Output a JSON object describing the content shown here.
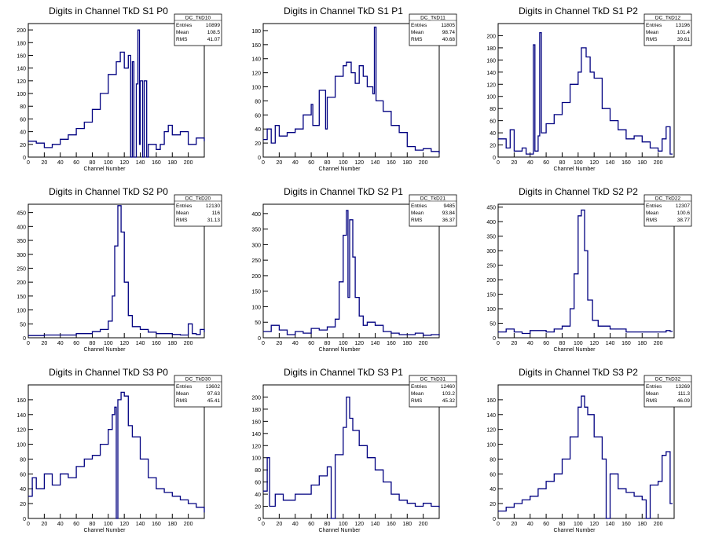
{
  "chart_data": [
    {
      "type": "histogram",
      "title": "Digits in Channel TkD S1 P0",
      "xlabel": "Channel Number",
      "ylabel": "",
      "xlim": [
        0,
        220
      ],
      "ylim": [
        0,
        210
      ],
      "yticks": [
        0,
        20,
        40,
        60,
        80,
        100,
        120,
        140,
        160,
        180,
        200
      ],
      "xticks": [
        0,
        20,
        40,
        60,
        80,
        100,
        120,
        140,
        160,
        180,
        200
      ],
      "stats": {
        "name": "DC_TkD10",
        "entries": "10899",
        "mean": "108.5",
        "rms": "41.07"
      },
      "points": [
        [
          0,
          25
        ],
        [
          10,
          22
        ],
        [
          20,
          15
        ],
        [
          30,
          20
        ],
        [
          40,
          28
        ],
        [
          50,
          35
        ],
        [
          60,
          45
        ],
        [
          70,
          55
        ],
        [
          80,
          75
        ],
        [
          90,
          100
        ],
        [
          100,
          130
        ],
        [
          110,
          150
        ],
        [
          115,
          165
        ],
        [
          120,
          140
        ],
        [
          125,
          160
        ],
        [
          128,
          0
        ],
        [
          130,
          150
        ],
        [
          132,
          0
        ],
        [
          135,
          115
        ],
        [
          137,
          200
        ],
        [
          139,
          20
        ],
        [
          140,
          120
        ],
        [
          143,
          0
        ],
        [
          145,
          120
        ],
        [
          148,
          0
        ],
        [
          150,
          20
        ],
        [
          160,
          12
        ],
        [
          165,
          20
        ],
        [
          170,
          40
        ],
        [
          175,
          50
        ],
        [
          180,
          35
        ],
        [
          190,
          40
        ],
        [
          200,
          20
        ],
        [
          210,
          30
        ],
        [
          220,
          25
        ]
      ]
    },
    {
      "type": "histogram",
      "title": "Digits in Channel TkD S1 P1",
      "xlabel": "Channel Number",
      "ylabel": "",
      "xlim": [
        0,
        220
      ],
      "ylim": [
        0,
        190
      ],
      "yticks": [
        0,
        20,
        40,
        60,
        80,
        100,
        120,
        140,
        160,
        180
      ],
      "xticks": [
        0,
        20,
        40,
        60,
        80,
        100,
        120,
        140,
        160,
        180,
        200
      ],
      "stats": {
        "name": "DC_TkD11",
        "entries": "11805",
        "mean": "98.74",
        "rms": "40.68"
      },
      "points": [
        [
          0,
          25
        ],
        [
          5,
          40
        ],
        [
          10,
          20
        ],
        [
          15,
          45
        ],
        [
          20,
          30
        ],
        [
          30,
          35
        ],
        [
          40,
          40
        ],
        [
          50,
          60
        ],
        [
          60,
          75
        ],
        [
          62,
          45
        ],
        [
          70,
          95
        ],
        [
          78,
          40
        ],
        [
          80,
          85
        ],
        [
          90,
          115
        ],
        [
          100,
          130
        ],
        [
          104,
          135
        ],
        [
          110,
          120
        ],
        [
          115,
          105
        ],
        [
          120,
          130
        ],
        [
          125,
          115
        ],
        [
          130,
          100
        ],
        [
          137,
          90
        ],
        [
          139,
          185
        ],
        [
          141,
          80
        ],
        [
          150,
          65
        ],
        [
          160,
          45
        ],
        [
          170,
          35
        ],
        [
          180,
          15
        ],
        [
          190,
          10
        ],
        [
          200,
          12
        ],
        [
          210,
          8
        ],
        [
          220,
          5
        ]
      ]
    },
    {
      "type": "histogram",
      "title": "Digits in Channel TkD S1 P2",
      "xlabel": "Channel Number",
      "ylabel": "",
      "xlim": [
        0,
        220
      ],
      "ylim": [
        0,
        220
      ],
      "yticks": [
        0,
        20,
        40,
        60,
        80,
        100,
        120,
        140,
        160,
        180,
        200
      ],
      "xticks": [
        0,
        20,
        40,
        60,
        80,
        100,
        120,
        140,
        160,
        180,
        200
      ],
      "stats": {
        "name": "DC_TkD12",
        "entries": "13196",
        "mean": "101.4",
        "rms": "39.61"
      },
      "points": [
        [
          0,
          30
        ],
        [
          10,
          15
        ],
        [
          15,
          45
        ],
        [
          20,
          10
        ],
        [
          30,
          15
        ],
        [
          35,
          5
        ],
        [
          44,
          185
        ],
        [
          46,
          10
        ],
        [
          50,
          35
        ],
        [
          52,
          205
        ],
        [
          54,
          40
        ],
        [
          60,
          55
        ],
        [
          70,
          70
        ],
        [
          80,
          90
        ],
        [
          90,
          120
        ],
        [
          100,
          140
        ],
        [
          104,
          180
        ],
        [
          110,
          165
        ],
        [
          115,
          140
        ],
        [
          120,
          130
        ],
        [
          130,
          80
        ],
        [
          140,
          60
        ],
        [
          150,
          45
        ],
        [
          160,
          30
        ],
        [
          170,
          35
        ],
        [
          180,
          25
        ],
        [
          190,
          15
        ],
        [
          200,
          10
        ],
        [
          205,
          30
        ],
        [
          210,
          50
        ],
        [
          215,
          5
        ]
      ]
    },
    {
      "type": "histogram",
      "title": "Digits in Channel TkD S2 P0",
      "xlabel": "Channel Number",
      "ylabel": "",
      "xlim": [
        0,
        220
      ],
      "ylim": [
        0,
        480
      ],
      "yticks": [
        0,
        50,
        100,
        150,
        200,
        250,
        300,
        350,
        400,
        450
      ],
      "xticks": [
        0,
        20,
        40,
        60,
        80,
        100,
        120,
        140,
        160,
        180,
        200
      ],
      "stats": {
        "name": "DC_TkD20",
        "entries": "12130",
        "mean": "116",
        "rms": "31.13"
      },
      "points": [
        [
          0,
          8
        ],
        [
          20,
          10
        ],
        [
          40,
          10
        ],
        [
          60,
          15
        ],
        [
          80,
          22
        ],
        [
          90,
          30
        ],
        [
          100,
          60
        ],
        [
          105,
          150
        ],
        [
          108,
          330
        ],
        [
          112,
          475
        ],
        [
          116,
          380
        ],
        [
          120,
          200
        ],
        [
          125,
          80
        ],
        [
          130,
          40
        ],
        [
          140,
          30
        ],
        [
          150,
          20
        ],
        [
          160,
          15
        ],
        [
          170,
          15
        ],
        [
          180,
          12
        ],
        [
          190,
          10
        ],
        [
          200,
          50
        ],
        [
          205,
          15
        ],
        [
          210,
          12
        ],
        [
          215,
          30
        ],
        [
          220,
          20
        ]
      ]
    },
    {
      "type": "histogram",
      "title": "Digits in Channel TkD S2 P1",
      "xlabel": "Channel Number",
      "ylabel": "",
      "xlim": [
        0,
        220
      ],
      "ylim": [
        0,
        430
      ],
      "yticks": [
        0,
        50,
        100,
        150,
        200,
        250,
        300,
        350,
        400
      ],
      "xticks": [
        0,
        20,
        40,
        60,
        80,
        100,
        120,
        140,
        160,
        180,
        200
      ],
      "stats": {
        "name": "DC_TkD21",
        "entries": "9485",
        "mean": "93.84",
        "rms": "36.37"
      },
      "points": [
        [
          0,
          20
        ],
        [
          10,
          40
        ],
        [
          20,
          25
        ],
        [
          30,
          10
        ],
        [
          40,
          20
        ],
        [
          50,
          15
        ],
        [
          60,
          30
        ],
        [
          70,
          25
        ],
        [
          80,
          35
        ],
        [
          90,
          60
        ],
        [
          95,
          180
        ],
        [
          100,
          330
        ],
        [
          104,
          410
        ],
        [
          106,
          130
        ],
        [
          108,
          380
        ],
        [
          112,
          260
        ],
        [
          115,
          130
        ],
        [
          120,
          70
        ],
        [
          125,
          40
        ],
        [
          130,
          50
        ],
        [
          140,
          40
        ],
        [
          150,
          20
        ],
        [
          160,
          15
        ],
        [
          170,
          10
        ],
        [
          180,
          10
        ],
        [
          190,
          15
        ],
        [
          200,
          8
        ],
        [
          210,
          10
        ],
        [
          220,
          8
        ]
      ]
    },
    {
      "type": "histogram",
      "title": "Digits in Channel TkD S2 P2",
      "xlabel": "Channel Number",
      "ylabel": "",
      "xlim": [
        0,
        220
      ],
      "ylim": [
        0,
        460
      ],
      "yticks": [
        0,
        50,
        100,
        150,
        200,
        250,
        300,
        350,
        400,
        450
      ],
      "xticks": [
        0,
        20,
        40,
        60,
        80,
        100,
        120,
        140,
        160,
        180,
        200
      ],
      "stats": {
        "name": "DC_TkD22",
        "entries": "12307",
        "mean": "100.6",
        "rms": "38.77"
      },
      "points": [
        [
          0,
          20
        ],
        [
          10,
          30
        ],
        [
          20,
          20
        ],
        [
          30,
          15
        ],
        [
          40,
          25
        ],
        [
          60,
          20
        ],
        [
          70,
          30
        ],
        [
          80,
          40
        ],
        [
          90,
          100
        ],
        [
          95,
          220
        ],
        [
          100,
          420
        ],
        [
          104,
          440
        ],
        [
          108,
          300
        ],
        [
          112,
          130
        ],
        [
          118,
          60
        ],
        [
          125,
          40
        ],
        [
          140,
          30
        ],
        [
          160,
          20
        ],
        [
          180,
          20
        ],
        [
          200,
          20
        ],
        [
          210,
          25
        ],
        [
          215,
          22
        ]
      ]
    },
    {
      "type": "histogram",
      "title": "Digits in Channel TkD S3 P0",
      "xlabel": "Channel Number",
      "ylabel": "",
      "xlim": [
        0,
        220
      ],
      "ylim": [
        0,
        180
      ],
      "yticks": [
        0,
        20,
        40,
        60,
        80,
        100,
        120,
        140,
        160
      ],
      "xticks": [
        0,
        20,
        40,
        60,
        80,
        100,
        120,
        140,
        160,
        180,
        200
      ],
      "stats": {
        "name": "DC_TkD30",
        "entries": "13602",
        "mean": "97.63",
        "rms": "45.41"
      },
      "points": [
        [
          0,
          30
        ],
        [
          5,
          55
        ],
        [
          10,
          40
        ],
        [
          20,
          60
        ],
        [
          30,
          45
        ],
        [
          40,
          60
        ],
        [
          50,
          55
        ],
        [
          60,
          70
        ],
        [
          70,
          80
        ],
        [
          80,
          85
        ],
        [
          90,
          100
        ],
        [
          100,
          120
        ],
        [
          105,
          140
        ],
        [
          108,
          150
        ],
        [
          110,
          0
        ],
        [
          112,
          160
        ],
        [
          116,
          170
        ],
        [
          120,
          165
        ],
        [
          125,
          125
        ],
        [
          130,
          110
        ],
        [
          140,
          80
        ],
        [
          150,
          55
        ],
        [
          160,
          40
        ],
        [
          170,
          35
        ],
        [
          180,
          30
        ],
        [
          190,
          25
        ],
        [
          200,
          20
        ],
        [
          210,
          15
        ],
        [
          220,
          8
        ]
      ]
    },
    {
      "type": "histogram",
      "title": "Digits in Channel TkD S3 P1",
      "xlabel": "Channel Number",
      "ylabel": "",
      "xlim": [
        0,
        220
      ],
      "ylim": [
        0,
        220
      ],
      "yticks": [
        0,
        20,
        40,
        60,
        80,
        100,
        120,
        140,
        160,
        180,
        200
      ],
      "xticks": [
        0,
        20,
        40,
        60,
        80,
        100,
        120,
        140,
        160,
        180,
        200
      ],
      "stats": {
        "name": "DC_TkD31",
        "entries": "12460",
        "mean": "103.2",
        "rms": "45.32"
      },
      "points": [
        [
          0,
          45
        ],
        [
          5,
          100
        ],
        [
          8,
          20
        ],
        [
          15,
          40
        ],
        [
          25,
          30
        ],
        [
          40,
          40
        ],
        [
          60,
          55
        ],
        [
          70,
          70
        ],
        [
          80,
          85
        ],
        [
          85,
          0
        ],
        [
          90,
          105
        ],
        [
          100,
          150
        ],
        [
          104,
          200
        ],
        [
          108,
          165
        ],
        [
          112,
          145
        ],
        [
          120,
          120
        ],
        [
          130,
          100
        ],
        [
          140,
          80
        ],
        [
          150,
          60
        ],
        [
          160,
          40
        ],
        [
          170,
          30
        ],
        [
          180,
          25
        ],
        [
          190,
          20
        ],
        [
          200,
          25
        ],
        [
          210,
          20
        ],
        [
          220,
          18
        ]
      ]
    },
    {
      "type": "histogram",
      "title": "Digits in Channel TkD S3 P2",
      "xlabel": "Channel Number",
      "ylabel": "",
      "xlim": [
        0,
        220
      ],
      "ylim": [
        0,
        180
      ],
      "yticks": [
        0,
        20,
        40,
        60,
        80,
        100,
        120,
        140,
        160
      ],
      "xticks": [
        0,
        20,
        40,
        60,
        80,
        100,
        120,
        140,
        160,
        180,
        200
      ],
      "stats": {
        "name": "DC_TkD32",
        "entries": "13269",
        "mean": "111.3",
        "rms": "46.09"
      },
      "points": [
        [
          0,
          10
        ],
        [
          10,
          15
        ],
        [
          20,
          20
        ],
        [
          30,
          25
        ],
        [
          40,
          30
        ],
        [
          50,
          40
        ],
        [
          60,
          50
        ],
        [
          70,
          60
        ],
        [
          80,
          80
        ],
        [
          90,
          110
        ],
        [
          100,
          150
        ],
        [
          104,
          165
        ],
        [
          108,
          150
        ],
        [
          112,
          140
        ],
        [
          120,
          110
        ],
        [
          130,
          80
        ],
        [
          135,
          0
        ],
        [
          140,
          60
        ],
        [
          150,
          40
        ],
        [
          160,
          35
        ],
        [
          170,
          30
        ],
        [
          180,
          25
        ],
        [
          185,
          0
        ],
        [
          190,
          45
        ],
        [
          200,
          50
        ],
        [
          205,
          85
        ],
        [
          210,
          90
        ],
        [
          215,
          20
        ]
      ]
    }
  ],
  "ui": {
    "stat_labels": {
      "entries": "Entries",
      "mean": "Mean",
      "rms": "RMS"
    }
  }
}
